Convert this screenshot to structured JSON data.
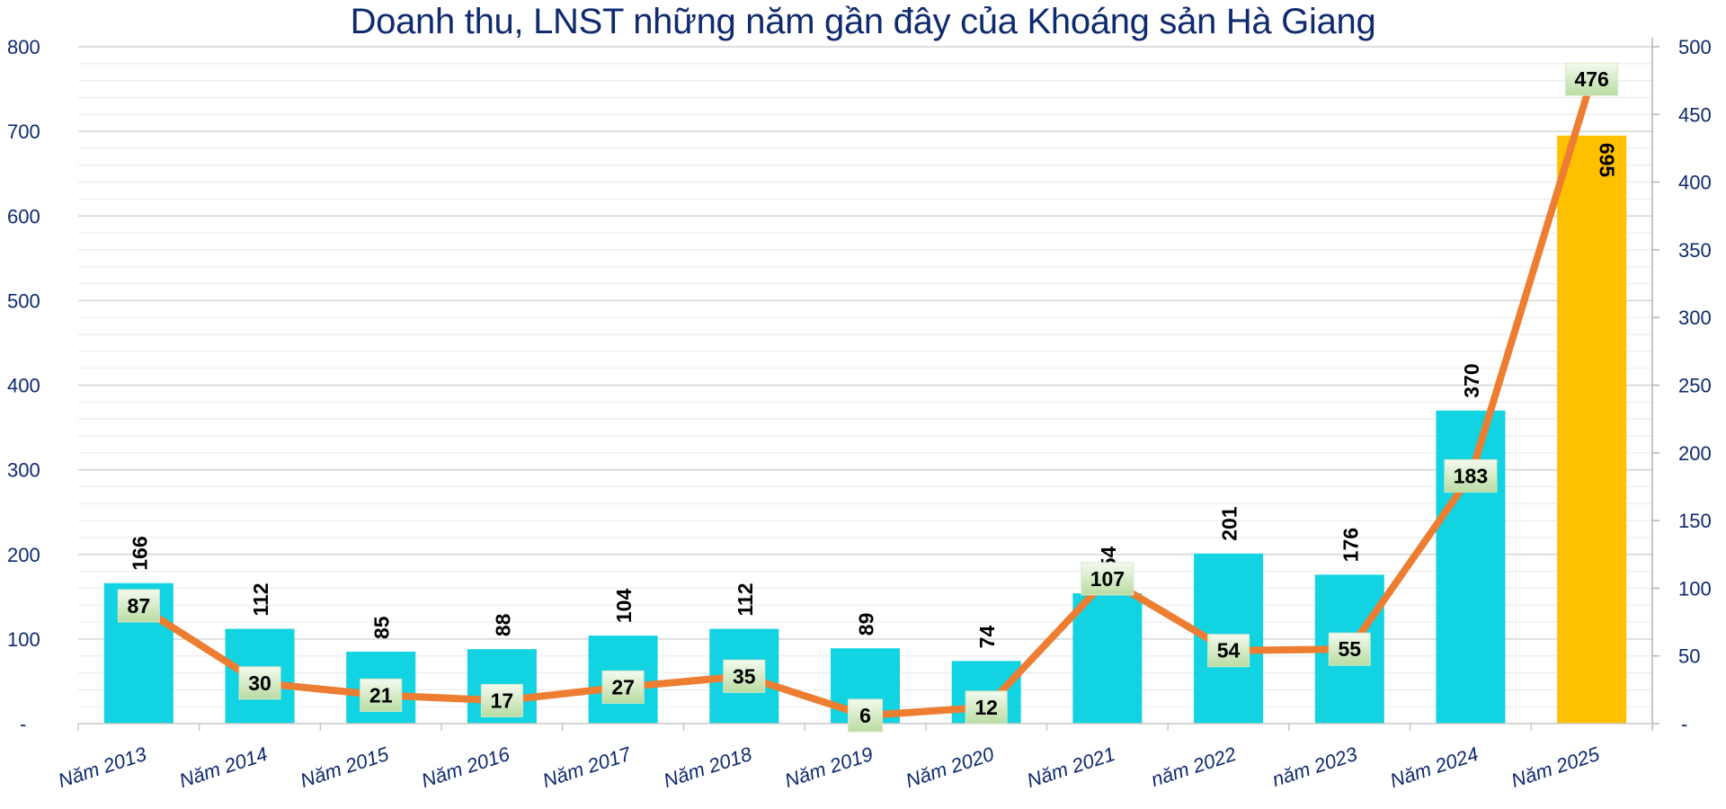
{
  "chart_data": {
    "type": "bar",
    "title": "Doanh thu, LNST những năm gần đây của Khoáng sản Hà Giang",
    "xlabel": "",
    "ylabel": "",
    "categories": [
      "Năm 2013",
      "Năm 2014",
      "Năm 2015",
      "Năm 2016",
      "Năm 2017",
      "Năm 2018",
      "Năm 2019",
      "Năm 2020",
      "Năm 2021",
      "năm 2022",
      "năm 2023",
      "Năm 2024",
      "Năm 2025"
    ],
    "series": [
      {
        "name": "Doanh thu",
        "type": "bar",
        "axis": "left",
        "values": [
          166,
          112,
          85,
          88,
          104,
          112,
          89,
          74,
          154,
          201,
          176,
          370,
          695
        ],
        "color": "#12d3e1",
        "highlight_color": "#ffc000",
        "highlight_index": 12
      },
      {
        "name": "LNST",
        "type": "line",
        "axis": "right",
        "values": [
          87,
          30,
          21,
          17,
          27,
          35,
          6,
          12,
          107,
          54,
          55,
          183,
          476
        ],
        "color": "#ed7d31"
      }
    ],
    "ylim": [
      0,
      800
    ],
    "y2lim": [
      0,
      500
    ],
    "yticks": [
      "-",
      "100",
      "200",
      "300",
      "400",
      "500",
      "600",
      "700",
      "800"
    ],
    "y2ticks": [
      "-",
      "50",
      "100",
      "150",
      "200",
      "250",
      "300",
      "350",
      "400",
      "450",
      "500"
    ],
    "grid": true,
    "legend": "none"
  }
}
